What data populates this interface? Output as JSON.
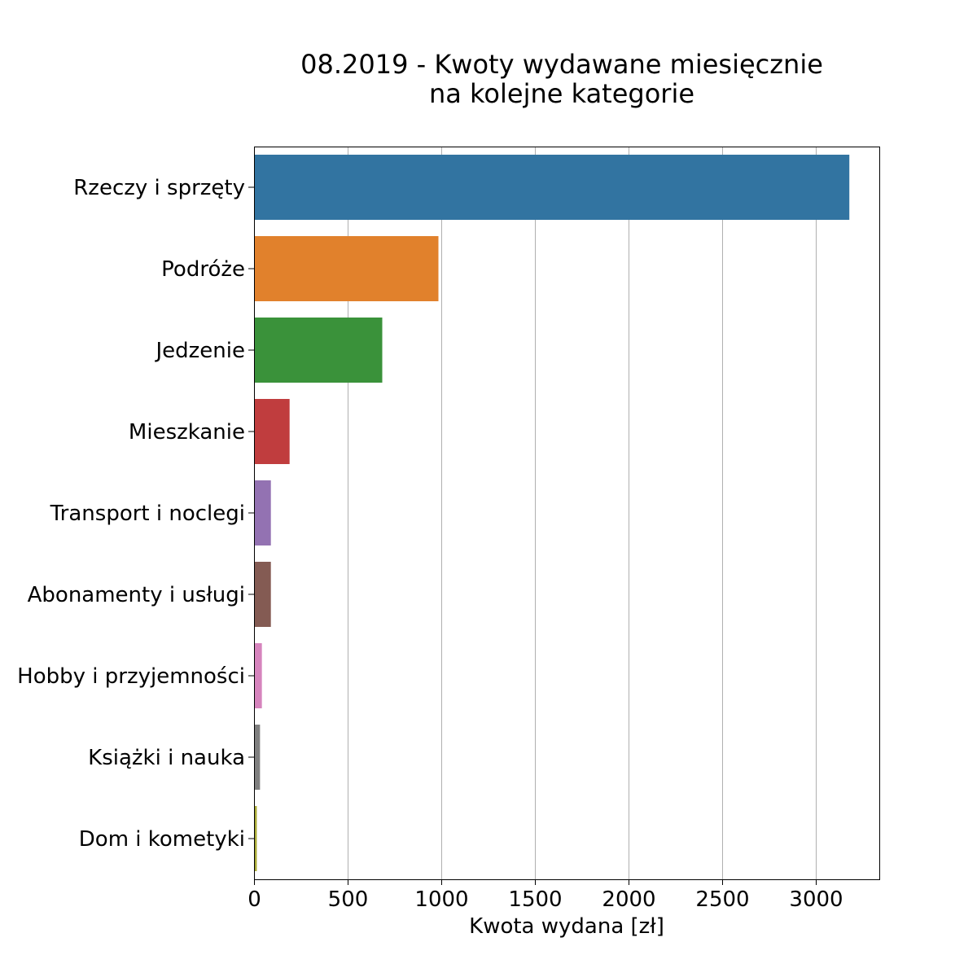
{
  "chart_data": {
    "type": "bar",
    "orientation": "horizontal",
    "title": [
      "08.2019 - Kwoty wydawane miesięcznie",
      "na kolejne kategorie"
    ],
    "xlabel": "Kwota wydana [zł]",
    "ylabel": "",
    "categories": [
      "Rzeczy i sprzęty",
      "Podróże",
      "Jedzenie",
      "Mieszkanie",
      "Transport i noclegi",
      "Abonamenty i usługi",
      "Hobby i przyjemności",
      "Książki i nauka",
      "Dom i kometyki"
    ],
    "values": [
      3180,
      985,
      685,
      190,
      90,
      90,
      42,
      32,
      15
    ],
    "colors": [
      "#3274a1",
      "#e1812c",
      "#3a923a",
      "#c03d3e",
      "#9372b2",
      "#845b53",
      "#d684bd",
      "#7f7f7f",
      "#a9aa35"
    ],
    "xlim": [
      0,
      3340
    ],
    "xticks": [
      0,
      500,
      1000,
      1500,
      2000,
      2500,
      3000
    ],
    "grid": "vertical",
    "legend": "none"
  }
}
